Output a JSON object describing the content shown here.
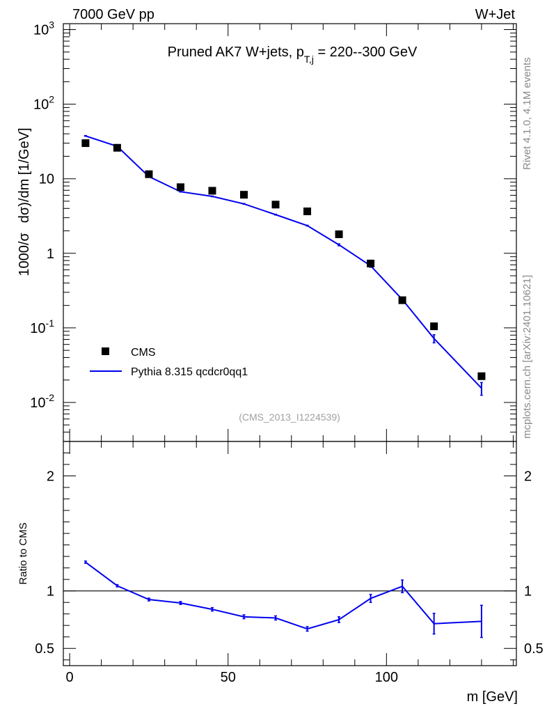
{
  "header": {
    "left": "7000 GeV pp",
    "right": "W+Jet"
  },
  "side_labels": {
    "rivet": "Rivet 4.1.0,  4.1M events",
    "mcplots": "mcplots.cern.ch [arXiv:2401.10621]"
  },
  "colors": {
    "mc": "#0000ee",
    "data": "#000000",
    "side": "#8a8a8a",
    "watermark": "#a0a0a0"
  },
  "chart_data": [
    {
      "type": "line",
      "title_main": "Pruned AK7 W+jets, p",
      "title_sub": "T,j",
      "title_rest": " = 220--300 GeV",
      "ylabel_prefix": "1000/σ",
      "ylabel_mid": "dσ",
      "ylabel_suffix": ")/dm [1/GeV]",
      "yscale": "log",
      "ylim": [
        0.003,
        1200
      ],
      "xlim": [
        -2,
        141
      ],
      "watermark": "(CMS_2013_I1224539)",
      "y_tick_labels": [
        {
          "value": 0.01,
          "base": "10",
          "exp": "-2"
        },
        {
          "value": 0.1,
          "base": "10",
          "exp": "-1"
        },
        {
          "value": 1,
          "base": "1",
          "exp": ""
        },
        {
          "value": 10,
          "base": "10",
          "exp": ""
        },
        {
          "value": 100,
          "base": "10",
          "exp": "2"
        },
        {
          "value": 1000,
          "base": "10",
          "exp": "3"
        }
      ],
      "legend": {
        "position": "bottom-left",
        "entries": [
          {
            "label": "CMS",
            "style": "marker"
          },
          {
            "label": "Pythia 8.315 qcdcr0qq1",
            "style": "line"
          }
        ]
      },
      "series": [
        {
          "name": "CMS",
          "style": "marker",
          "x": [
            5,
            15,
            25,
            35,
            45,
            55,
            65,
            75,
            85,
            95,
            105,
            115,
            130
          ],
          "y": [
            30,
            26,
            11.5,
            7.7,
            6.9,
            6.1,
            4.5,
            3.65,
            1.8,
            0.73,
            0.235,
            0.105,
            0.0225
          ]
        },
        {
          "name": "Pythia 8.315 qcdcr0qq1",
          "style": "line",
          "x": [
            5,
            15,
            25,
            35,
            45,
            55,
            65,
            75,
            85,
            95,
            105,
            115,
            130
          ],
          "y": [
            37.5,
            27.2,
            10.7,
            6.7,
            5.8,
            4.6,
            3.3,
            2.35,
            1.3,
            0.68,
            0.24,
            0.072,
            0.0155
          ],
          "err": [
            0.4,
            0.3,
            0.12,
            0.07,
            0.06,
            0.05,
            0.04,
            0.03,
            0.04,
            0.03,
            0.015,
            0.009,
            0.003
          ]
        }
      ]
    },
    {
      "type": "line",
      "ylabel": "Ratio to CMS",
      "xlabel": "m [GeV]",
      "ylim": [
        0.35,
        2.3
      ],
      "xlim": [
        -2,
        141
      ],
      "reference_line": 1,
      "y_ticks": [
        0.5,
        1,
        2
      ],
      "y_tick_labels": [
        "0.5",
        "1",
        "2"
      ],
      "x_ticks": [
        0,
        50,
        100
      ],
      "x_tick_labels": [
        "0",
        "50",
        "100"
      ],
      "series": [
        {
          "name": "Pythia 8.315 qcdcr0qq1 / CMS",
          "x": [
            5,
            15,
            25,
            35,
            45,
            55,
            65,
            75,
            85,
            95,
            105,
            115,
            130
          ],
          "y": [
            1.25,
            1.045,
            0.925,
            0.895,
            0.84,
            0.775,
            0.765,
            0.67,
            0.75,
            0.935,
            1.04,
            0.715,
            0.735
          ],
          "err": [
            0.01,
            0.01,
            0.012,
            0.013,
            0.015,
            0.017,
            0.018,
            0.02,
            0.025,
            0.035,
            0.055,
            0.09,
            0.14
          ]
        }
      ]
    }
  ]
}
